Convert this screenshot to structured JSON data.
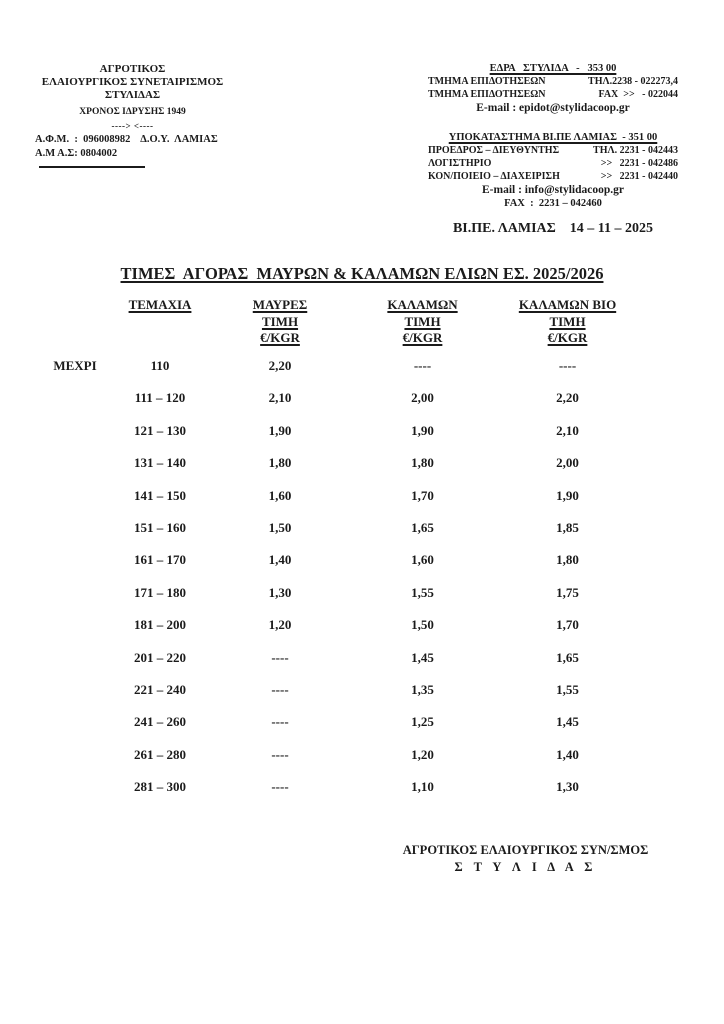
{
  "page": {
    "background": "#ffffff",
    "text_color": "#1b1b1b"
  },
  "letterhead": {
    "left": {
      "org_line1": "ΑΓΡΟΤΙΚΟΣ",
      "org_line2": "ΕΛΑΙΟΥΡΓΙΚΟΣ ΣΥΝΕΤΑΙΡΙΣΜΟΣ",
      "org_line3": "ΣΤΥΛΙΔΑΣ",
      "founded": "ΧΡΟΝΟΣ ΙΔΡΥΣΗΣ 1949",
      "arrows": "----> <----",
      "afm_line": "Α.Φ.Μ.  :  096008982    Δ.Ο.Υ.  ΛΑΜΙΑΣ",
      "am_line": "Α.Μ Α.Σ: 0804002"
    },
    "right": {
      "hq_title": "ΕΔΡΑ   ΣΤΥΛΙΔΑ   -   353 00",
      "hq_lines": [
        {
          "label": "ΤΜΗΜΑ ΕΠΙΔΟΤΗΣΕΩΝ",
          "value": "ΤΗΛ.2238 - 022273,4"
        },
        {
          "label": "ΤΜΗΜΑ ΕΠΙΔΟΤΗΣΕΩΝ",
          "value": "FAX  >>   - 022044"
        }
      ],
      "hq_email": "E-mail : epidot@stylidacoop.gr",
      "branch_title": "ΥΠΟΚΑΤΑΣΤΗΜΑ ΒΙ.ΠΕ ΛΑΜΙΑΣ  - 351 00",
      "branch_lines": [
        {
          "label": "ΠΡΟΕΔΡΟΣ – ΔΙΕΥΘΥΝΤΗΣ",
          "value": "ΤΗΛ. 2231 - 042443"
        },
        {
          "label": "ΛΟΓΙΣΤΗΡΙΟ",
          "value": ">>   2231 - 042486"
        },
        {
          "label": "ΚΟΝ/ΠΟΙΕΙΟ – ΔΙΑΧΕΙΡΙΣΗ",
          "value": ">>   2231 - 042440"
        }
      ],
      "branch_email": "E-mail : info@stylidacoop.gr",
      "branch_fax": "FAX  :  2231 – 042460"
    }
  },
  "dateline": "ΒΙ.ΠΕ. ΛΑΜΙΑΣ    14 – 11 – 2025",
  "title": "ΤΙΜΕΣ  ΑΓΟΡΑΣ  ΜΑΥΡΩΝ & ΚΑΛΑΜΩΝ ΕΛΙΩΝ ΕΣ. 2025/2026",
  "table": {
    "columns": [
      {
        "lines": [
          "ΤΕΜΑΧΙΑ"
        ]
      },
      {
        "lines": [
          "ΜΑΥΡΕΣ",
          "ΤΙΜΗ",
          "€/KGR"
        ]
      },
      {
        "lines": [
          "ΚΑΛΑΜΩΝ",
          "ΤΙΜΗ",
          "€/KGR"
        ]
      },
      {
        "lines": [
          "ΚΑΛΑΜΩΝ ΒΙΟ",
          "ΤΙΜΗ",
          "€/KGR"
        ]
      }
    ],
    "rows": [
      {
        "prefix": "ΜΕΧΡΙ",
        "range": "110",
        "mavres": "2,20",
        "kalamon": "----",
        "kalamon_bio": "----"
      },
      {
        "prefix": "",
        "range": "111 – 120",
        "mavres": "2,10",
        "kalamon": "2,00",
        "kalamon_bio": "2,20"
      },
      {
        "prefix": "",
        "range": "121 – 130",
        "mavres": "1,90",
        "kalamon": "1,90",
        "kalamon_bio": "2,10"
      },
      {
        "prefix": "",
        "range": "131 – 140",
        "mavres": "1,80",
        "kalamon": "1,80",
        "kalamon_bio": "2,00"
      },
      {
        "prefix": "",
        "range": "141 – 150",
        "mavres": "1,60",
        "kalamon": "1,70",
        "kalamon_bio": "1,90"
      },
      {
        "prefix": "",
        "range": "151 – 160",
        "mavres": "1,50",
        "kalamon": "1,65",
        "kalamon_bio": "1,85"
      },
      {
        "prefix": "",
        "range": "161 – 170",
        "mavres": "1,40",
        "kalamon": "1,60",
        "kalamon_bio": "1,80"
      },
      {
        "prefix": "",
        "range": "171 – 180",
        "mavres": "1,30",
        "kalamon": "1,55",
        "kalamon_bio": "1,75"
      },
      {
        "prefix": "",
        "range": "181 – 200",
        "mavres": "1,20",
        "kalamon": "1,50",
        "kalamon_bio": "1,70"
      },
      {
        "prefix": "",
        "range": "201 – 220",
        "mavres": "----",
        "kalamon": "1,45",
        "kalamon_bio": "1,65"
      },
      {
        "prefix": "",
        "range": "221 – 240",
        "mavres": "----",
        "kalamon": "1,35",
        "kalamon_bio": "1,55"
      },
      {
        "prefix": "",
        "range": "241 – 260",
        "mavres": "----",
        "kalamon": "1,25",
        "kalamon_bio": "1,45"
      },
      {
        "prefix": "",
        "range": "261 – 280",
        "mavres": "----",
        "kalamon": "1,20",
        "kalamon_bio": "1,40"
      },
      {
        "prefix": "",
        "range": "281 – 300",
        "mavres": "----",
        "kalamon": "1,10",
        "kalamon_bio": "1,30"
      }
    ]
  },
  "signature": {
    "line1": "ΑΓΡΟΤΙΚΟΣ ΕΛΑΙΟΥΡΓΙΚΟΣ ΣΥΝ/ΣΜΟΣ",
    "line2": "Σ Τ Υ Λ Ι Δ Α Σ"
  }
}
